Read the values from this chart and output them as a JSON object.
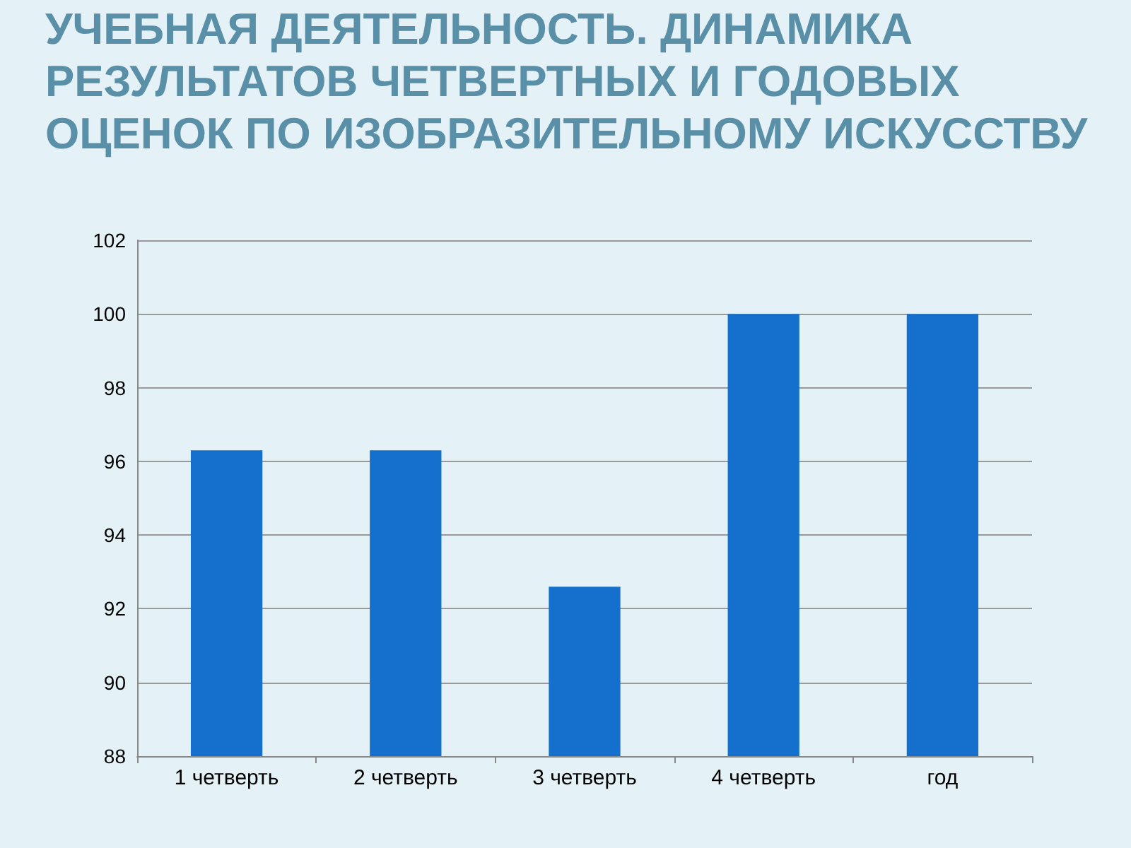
{
  "chart_data": {
    "type": "bar",
    "title": "УЧЕБНАЯ ДЕЯТЕЛЬНОСТЬ. ДИНАМИКА РЕЗУЛЬТАТОВ ЧЕТВЕРТНЫХ И ГОДОВЫХ ОЦЕНОК ПО ИЗОБРАЗИТЕЛЬНОМУ ИСКУССТВУ",
    "categories": [
      "1 четверть",
      "2 четверть",
      "3 четверть",
      "4 четверть",
      "год"
    ],
    "values": [
      96.3,
      96.3,
      92.6,
      100,
      100
    ],
    "color": "#1470cc",
    "ylim": [
      88,
      102
    ],
    "yticks": [
      88,
      90,
      92,
      94,
      96,
      98,
      100,
      102
    ],
    "grid": "y"
  }
}
